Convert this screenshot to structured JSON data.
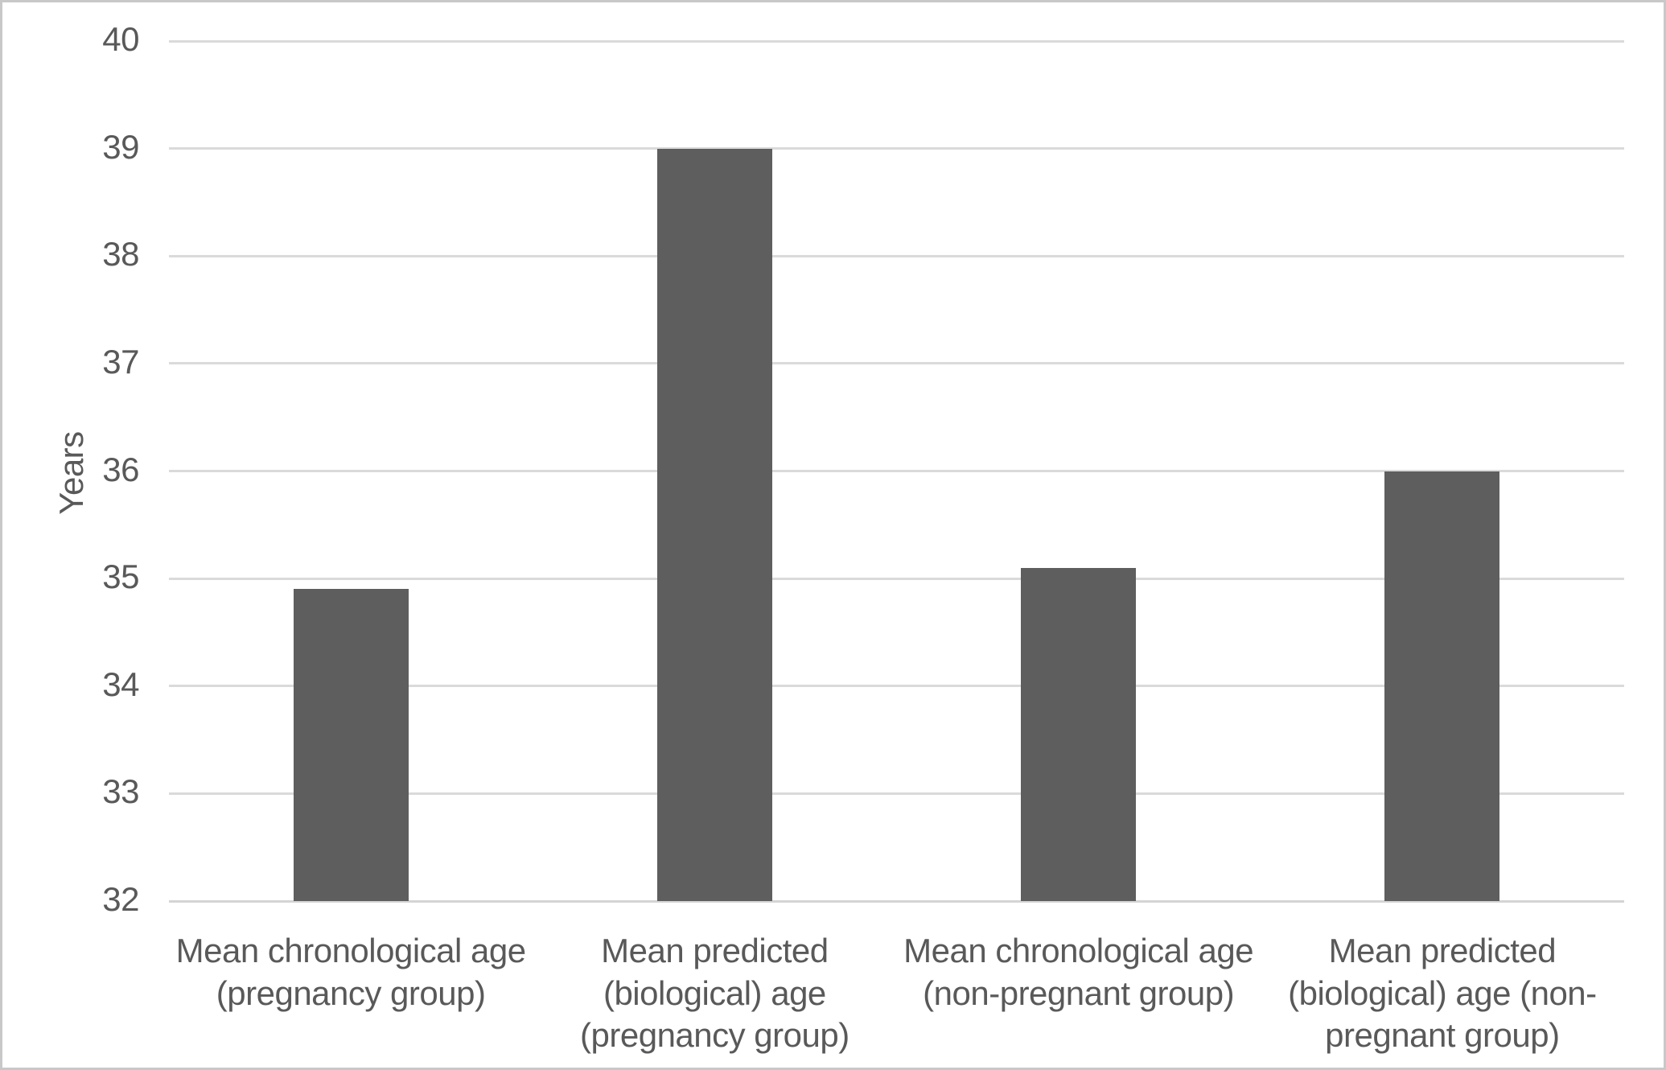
{
  "chart_data": {
    "type": "bar",
    "title": "",
    "xlabel": "",
    "ylabel": "Years",
    "ylim": [
      32,
      40
    ],
    "ytick_step": 1,
    "yticks": [
      32,
      33,
      34,
      35,
      36,
      37,
      38,
      39,
      40
    ],
    "grid": true,
    "legend": false,
    "categories": [
      {
        "label": "Mean chronological age (pregnancy group)",
        "lines": [
          "Mean chronological age",
          "(pregnancy group)"
        ]
      },
      {
        "label": "Mean predicted (biological) age (pregnancy group)",
        "lines": [
          "Mean predicted",
          "(biological) age",
          "(pregnancy group)"
        ]
      },
      {
        "label": "Mean chronological age (non-pregnant group)",
        "lines": [
          "Mean chronological age",
          "(non-pregnant group)"
        ]
      },
      {
        "label": "Mean predicted (biological) age (non-pregnant group)",
        "lines": [
          "Mean predicted",
          "(biological) age (non-",
          "pregnant group)"
        ]
      }
    ],
    "values": [
      34.9,
      39.0,
      35.1,
      36.0
    ],
    "colors": {
      "bar": "#5e5e5e",
      "text": "#595959",
      "gridline": "#dadada",
      "axis_line": "#d4d4d4",
      "frame_border": "#c8c8c8"
    }
  }
}
